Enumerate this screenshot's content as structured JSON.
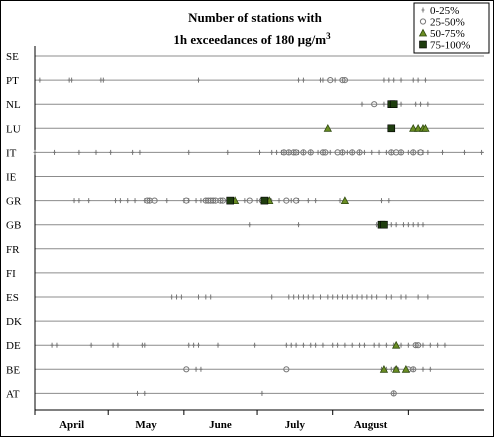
{
  "chart_data": {
    "type": "scatter",
    "title_line1": "Number of stations with",
    "title_line2_prefix": "1h exceedances of 180 ",
    "title_line2_unit": "µg/m",
    "title_line2_sup": "3",
    "categories": [
      "SE",
      "PT",
      "NL",
      "LU",
      "IT",
      "IE",
      "GR",
      "GB",
      "FR",
      "FI",
      "ES",
      "DK",
      "DE",
      "BE",
      "AT"
    ],
    "x_domain_days": [
      0,
      184
    ],
    "xticks": [
      {
        "label": "April",
        "at": 15
      },
      {
        "label": "May",
        "at": 45.5
      },
      {
        "label": "June",
        "at": 76
      },
      {
        "label": "July",
        "at": 106.5
      },
      {
        "label": "August",
        "at": 137.5
      }
    ],
    "month_boundaries": [
      0,
      30,
      61,
      91,
      122,
      153
    ],
    "grid": "horizontal",
    "legend_position": "top-right",
    "legend": [
      {
        "label": "0-25%",
        "marker": "plus"
      },
      {
        "label": "25-50%",
        "marker": "circle"
      },
      {
        "label": "50-75%",
        "marker": "triangle"
      },
      {
        "label": "75-100%",
        "marker": "square"
      }
    ],
    "series": [
      {
        "name": "0-25%",
        "points": [
          [
            "PT",
            2
          ],
          [
            "PT",
            14
          ],
          [
            "PT",
            15
          ],
          [
            "PT",
            27
          ],
          [
            "PT",
            28
          ],
          [
            "PT",
            67
          ],
          [
            "PT",
            108
          ],
          [
            "PT",
            110
          ],
          [
            "PT",
            117
          ],
          [
            "PT",
            118
          ],
          [
            "PT",
            123
          ],
          [
            "PT",
            143
          ],
          [
            "PT",
            145
          ],
          [
            "PT",
            147
          ],
          [
            "PT",
            150
          ],
          [
            "PT",
            155
          ],
          [
            "PT",
            157
          ],
          [
            "PT",
            160
          ],
          [
            "NL",
            134
          ],
          [
            "NL",
            143
          ],
          [
            "NL",
            148
          ],
          [
            "NL",
            150
          ],
          [
            "NL",
            156
          ],
          [
            "NL",
            158
          ],
          [
            "NL",
            161
          ],
          [
            "IT",
            0
          ],
          [
            "IT",
            8
          ],
          [
            "IT",
            18
          ],
          [
            "IT",
            25
          ],
          [
            "IT",
            31
          ],
          [
            "IT",
            40
          ],
          [
            "IT",
            43
          ],
          [
            "IT",
            63
          ],
          [
            "IT",
            79
          ],
          [
            "IT",
            92
          ],
          [
            "IT",
            97
          ],
          [
            "IT",
            99
          ],
          [
            "IT",
            101
          ],
          [
            "IT",
            102
          ],
          [
            "IT",
            104
          ],
          [
            "IT",
            106
          ],
          [
            "IT",
            108
          ],
          [
            "IT",
            110
          ],
          [
            "IT",
            113
          ],
          [
            "IT",
            116
          ],
          [
            "IT",
            118
          ],
          [
            "IT",
            121
          ],
          [
            "IT",
            126
          ],
          [
            "IT",
            128
          ],
          [
            "IT",
            130
          ],
          [
            "IT",
            133
          ],
          [
            "IT",
            135
          ],
          [
            "IT",
            138
          ],
          [
            "IT",
            141
          ],
          [
            "IT",
            144
          ],
          [
            "IT",
            146
          ],
          [
            "IT",
            150
          ],
          [
            "IT",
            153
          ],
          [
            "IT",
            155
          ],
          [
            "IT",
            157
          ],
          [
            "IT",
            159
          ],
          [
            "IT",
            161
          ],
          [
            "IT",
            167
          ],
          [
            "IT",
            176
          ],
          [
            "IT",
            183
          ],
          [
            "GR",
            16
          ],
          [
            "GR",
            18
          ],
          [
            "GR",
            22
          ],
          [
            "GR",
            33
          ],
          [
            "GR",
            35
          ],
          [
            "GR",
            38
          ],
          [
            "GR",
            41
          ],
          [
            "GR",
            45
          ],
          [
            "GR",
            47
          ],
          [
            "GR",
            54
          ],
          [
            "GR",
            61
          ],
          [
            "GR",
            63
          ],
          [
            "GR",
            66
          ],
          [
            "GR",
            68
          ],
          [
            "GR",
            70
          ],
          [
            "GR",
            73
          ],
          [
            "GR",
            76
          ],
          [
            "GR",
            82
          ],
          [
            "GR",
            86
          ],
          [
            "GR",
            91
          ],
          [
            "GR",
            96
          ],
          [
            "GR",
            100
          ],
          [
            "GR",
            105
          ],
          [
            "GR",
            108
          ],
          [
            "GR",
            112
          ],
          [
            "GR",
            115
          ],
          [
            "GR",
            125
          ],
          [
            "GR",
            142
          ],
          [
            "GR",
            145
          ],
          [
            "GB",
            88
          ],
          [
            "GB",
            108
          ],
          [
            "GB",
            140
          ],
          [
            "GB",
            142
          ],
          [
            "GB",
            146
          ],
          [
            "GB",
            148
          ],
          [
            "GB",
            151
          ],
          [
            "GB",
            153
          ],
          [
            "GB",
            155
          ],
          [
            "GB",
            157
          ],
          [
            "GB",
            159
          ],
          [
            "ES",
            56
          ],
          [
            "ES",
            58
          ],
          [
            "ES",
            60
          ],
          [
            "ES",
            67
          ],
          [
            "ES",
            70
          ],
          [
            "ES",
            72
          ],
          [
            "ES",
            97
          ],
          [
            "ES",
            104
          ],
          [
            "ES",
            106
          ],
          [
            "ES",
            108
          ],
          [
            "ES",
            110
          ],
          [
            "ES",
            112
          ],
          [
            "ES",
            114
          ],
          [
            "ES",
            117
          ],
          [
            "ES",
            120
          ],
          [
            "ES",
            122
          ],
          [
            "ES",
            124
          ],
          [
            "ES",
            126
          ],
          [
            "ES",
            128
          ],
          [
            "ES",
            130
          ],
          [
            "ES",
            132
          ],
          [
            "ES",
            134
          ],
          [
            "ES",
            136
          ],
          [
            "ES",
            138
          ],
          [
            "ES",
            140
          ],
          [
            "ES",
            144
          ],
          [
            "ES",
            146
          ],
          [
            "ES",
            150
          ],
          [
            "ES",
            152
          ],
          [
            "ES",
            157
          ],
          [
            "ES",
            161
          ],
          [
            "DE",
            7
          ],
          [
            "DE",
            9
          ],
          [
            "DE",
            23
          ],
          [
            "DE",
            32
          ],
          [
            "DE",
            34
          ],
          [
            "DE",
            44
          ],
          [
            "DE",
            45
          ],
          [
            "DE",
            63
          ],
          [
            "DE",
            65
          ],
          [
            "DE",
            67
          ],
          [
            "DE",
            75
          ],
          [
            "DE",
            90
          ],
          [
            "DE",
            103
          ],
          [
            "DE",
            105
          ],
          [
            "DE",
            107
          ],
          [
            "DE",
            110
          ],
          [
            "DE",
            113
          ],
          [
            "DE",
            115
          ],
          [
            "DE",
            118
          ],
          [
            "DE",
            122
          ],
          [
            "DE",
            124
          ],
          [
            "DE",
            127
          ],
          [
            "DE",
            130
          ],
          [
            "DE",
            133
          ],
          [
            "DE",
            135
          ],
          [
            "DE",
            139
          ],
          [
            "DE",
            141
          ],
          [
            "DE",
            144
          ],
          [
            "DE",
            147
          ],
          [
            "DE",
            150
          ],
          [
            "DE",
            153
          ],
          [
            "DE",
            156
          ],
          [
            "DE",
            159
          ],
          [
            "DE",
            162
          ],
          [
            "DE",
            165
          ],
          [
            "DE",
            168
          ],
          [
            "BE",
            66
          ],
          [
            "BE",
            68
          ],
          [
            "BE",
            142
          ],
          [
            "BE",
            144
          ],
          [
            "BE",
            146
          ],
          [
            "BE",
            148
          ],
          [
            "BE",
            155
          ],
          [
            "BE",
            159
          ],
          [
            "BE",
            162
          ],
          [
            "AT",
            42
          ],
          [
            "AT",
            45
          ],
          [
            "AT",
            93
          ],
          [
            "AT",
            147
          ]
        ]
      },
      {
        "name": "25-50%",
        "points": [
          [
            "PT",
            121
          ],
          [
            "PT",
            126
          ],
          [
            "PT",
            127
          ],
          [
            "NL",
            139
          ],
          [
            "IT",
            102
          ],
          [
            "IT",
            104
          ],
          [
            "IT",
            106
          ],
          [
            "IT",
            107
          ],
          [
            "IT",
            110
          ],
          [
            "IT",
            113
          ],
          [
            "IT",
            118
          ],
          [
            "IT",
            119
          ],
          [
            "IT",
            124
          ],
          [
            "IT",
            126
          ],
          [
            "IT",
            130
          ],
          [
            "IT",
            133
          ],
          [
            "IT",
            146
          ],
          [
            "IT",
            148
          ],
          [
            "IT",
            150
          ],
          [
            "IT",
            155
          ],
          [
            "IT",
            158
          ],
          [
            "GR",
            46
          ],
          [
            "GR",
            47
          ],
          [
            "GR",
            49
          ],
          [
            "GR",
            62
          ],
          [
            "GR",
            70
          ],
          [
            "GR",
            71
          ],
          [
            "GR",
            72
          ],
          [
            "GR",
            73
          ],
          [
            "GR",
            74
          ],
          [
            "GR",
            76
          ],
          [
            "GR",
            77
          ],
          [
            "GR",
            88
          ],
          [
            "GR",
            93
          ],
          [
            "GR",
            96
          ],
          [
            "GR",
            103
          ],
          [
            "GR",
            107
          ],
          [
            "GB",
            143
          ],
          [
            "DE",
            156
          ],
          [
            "DE",
            157
          ],
          [
            "BE",
            62
          ],
          [
            "BE",
            103
          ],
          [
            "BE",
            148
          ],
          [
            "BE",
            153
          ],
          [
            "BE",
            155
          ],
          [
            "AT",
            147
          ]
        ]
      },
      {
        "name": "50-75%",
        "points": [
          [
            "LU",
            120
          ],
          [
            "LU",
            155
          ],
          [
            "LU",
            157
          ],
          [
            "LU",
            159
          ],
          [
            "LU",
            160
          ],
          [
            "GR",
            82
          ],
          [
            "GR",
            96
          ],
          [
            "GR",
            127
          ],
          [
            "DE",
            148
          ],
          [
            "BE",
            143
          ],
          [
            "BE",
            148
          ],
          [
            "BE",
            152
          ]
        ]
      },
      {
        "name": "75-100%",
        "points": [
          [
            "NL",
            146
          ],
          [
            "NL",
            147
          ],
          [
            "LU",
            146
          ],
          [
            "GR",
            80
          ],
          [
            "GR",
            94
          ],
          [
            "GB",
            142
          ],
          [
            "GB",
            143
          ]
        ]
      }
    ]
  }
}
